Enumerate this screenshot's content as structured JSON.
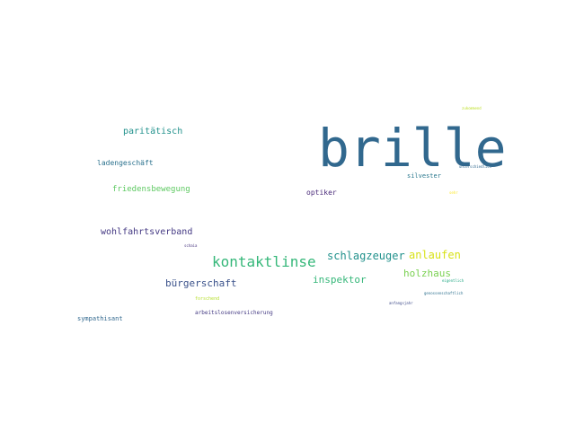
{
  "words": [
    {
      "text": "brille",
      "color": "#31688e"
    },
    {
      "text": "kontaktlinse",
      "color": "#35b779"
    },
    {
      "text": "schlagzeuger",
      "color": "#21918c"
    },
    {
      "text": "anlaufen",
      "color": "#d8e219"
    },
    {
      "text": "holzhaus",
      "color": "#7ad151"
    },
    {
      "text": "inspektor",
      "color": "#35b779"
    },
    {
      "text": "bürgerschaft",
      "color": "#3b528b"
    },
    {
      "text": "wohlfahrtsverband",
      "color": "#443983"
    },
    {
      "text": "paritätisch",
      "color": "#21918c"
    },
    {
      "text": "friedensbewegung",
      "color": "#5ec962"
    },
    {
      "text": "ladengeschäft",
      "color": "#2c728e"
    },
    {
      "text": "optiker",
      "color": "#482878"
    },
    {
      "text": "silvester",
      "color": "#2a788e"
    },
    {
      "text": "sympathisant",
      "color": "#31688e"
    },
    {
      "text": "arbeitslosenversicherung",
      "color": "#443a83"
    },
    {
      "text": "forschend",
      "color": "#b5de2b"
    },
    {
      "text": "schaia",
      "color": "#46337e"
    },
    {
      "text": "anfangsjahr",
      "color": "#3e4a89"
    },
    {
      "text": "genossenschaftlich",
      "color": "#2d708e"
    },
    {
      "text": "eigentlich",
      "color": "#22a884"
    },
    {
      "text": "unterschiedlich",
      "color": "#31688e"
    },
    {
      "text": "sehr",
      "color": "#fde725"
    },
    {
      "text": "zukommend",
      "color": "#bddf26"
    }
  ]
}
